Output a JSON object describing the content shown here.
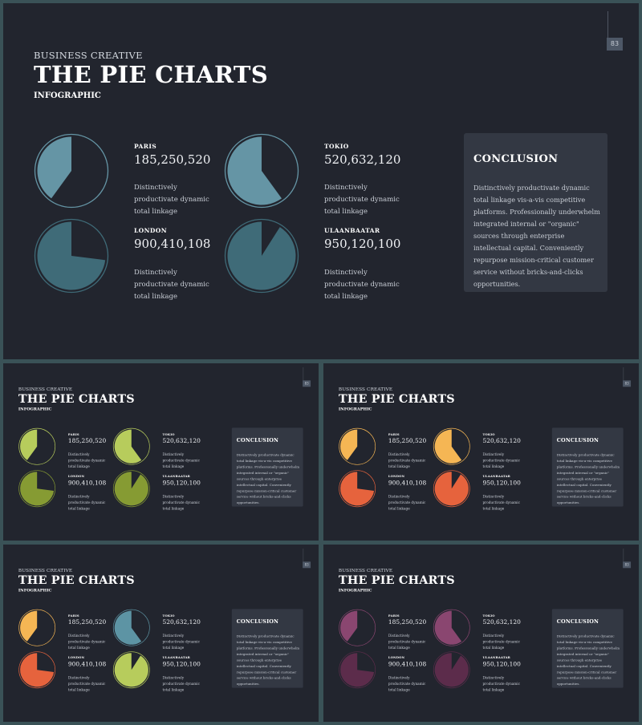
{
  "slide": {
    "kicker": "BUSINESS CREATIVE",
    "title": "THE PIE CHARTS",
    "subtitle": "INFOGRAPHIC",
    "page_number": "83",
    "conclusion": {
      "heading": "CONCLUSION",
      "text": "Distinctively productivate dynamic total linkage vis-a-vis competitive platforms. Professionally underwhelm integrated internal or \"organic\" sources through enterprise intellectual capital. Conveniently repurpose mission-critical customer service without bricks-and-clicks opportunities."
    },
    "items": [
      {
        "city": "PARIS",
        "value": "185,250,520",
        "desc": "Distinctively productivate dynamic total linkage",
        "fraction": 0.4
      },
      {
        "city": "TOKIO",
        "value": "520,632,120",
        "desc": "Distinctively productivate dynamic total linkage",
        "fraction": 0.6
      },
      {
        "city": "LONDON",
        "value": "900,410,108",
        "desc": "Distinctively productivate dynamic total linkage",
        "fraction": 0.73
      },
      {
        "city": "ULAANBAATAR",
        "value": "950,120,100",
        "desc": "Distinctively productivate dynamic total linkage",
        "fraction": 0.91
      }
    ]
  },
  "themes": [
    {
      "name": "main",
      "colors": [
        "#6595a5",
        "#6595a5",
        "#3f6b78",
        "#3f6b78"
      ]
    },
    {
      "name": "green",
      "colors": [
        "#b7cc5c",
        "#b7cc5c",
        "#869b33",
        "#869b33"
      ]
    },
    {
      "name": "orange",
      "colors": [
        "#f5b654",
        "#f5b654",
        "#e6633d",
        "#e6633d"
      ]
    },
    {
      "name": "mixed",
      "colors": [
        "#f5b654",
        "#5d94a4",
        "#e6633d",
        "#b7cc5c"
      ]
    },
    {
      "name": "purple",
      "colors": [
        "#8a4670",
        "#8a4670",
        "#5c2c4b",
        "#5c2c4b"
      ]
    }
  ]
}
